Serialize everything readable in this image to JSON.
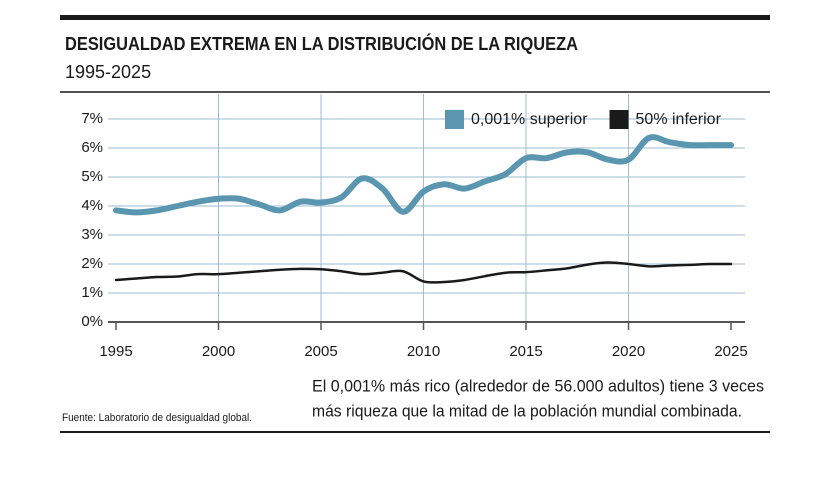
{
  "chart_data": {
    "type": "line",
    "title": "DESIGUALDAD EXTREMA EN LA DISTRIBUCIÓN DE LA RIQUEZA",
    "subtitle": "1995-2025",
    "source": "Fuente: Laboratorio de desigualdad global.",
    "annotation": [
      "El 0,001% más rico (alrededor de 56.000 adultos) tiene 3 veces",
      "más riqueza que la mitad de la población mundial combinada."
    ],
    "x": [
      1995,
      1996,
      1997,
      1998,
      1999,
      2000,
      2001,
      2002,
      2003,
      2004,
      2005,
      2006,
      2007,
      2008,
      2009,
      2010,
      2011,
      2012,
      2013,
      2014,
      2015,
      2016,
      2017,
      2018,
      2019,
      2020,
      2021,
      2022,
      2023,
      2024,
      2025
    ],
    "series": [
      {
        "name": "0,001% superior",
        "color": "#5b96b0",
        "values": [
          3.85,
          3.78,
          3.85,
          4.0,
          4.15,
          4.25,
          4.25,
          4.05,
          3.85,
          4.15,
          4.12,
          4.3,
          4.95,
          4.6,
          3.8,
          4.5,
          4.75,
          4.6,
          4.85,
          5.1,
          5.65,
          5.65,
          5.85,
          5.85,
          5.6,
          5.6,
          6.35,
          6.2,
          6.1,
          6.1,
          6.1
        ]
      },
      {
        "name": "50% inferior",
        "color": "#1a1a1a",
        "values": [
          1.45,
          1.5,
          1.55,
          1.57,
          1.65,
          1.65,
          1.7,
          1.75,
          1.8,
          1.83,
          1.82,
          1.75,
          1.65,
          1.7,
          1.75,
          1.4,
          1.38,
          1.45,
          1.58,
          1.7,
          1.72,
          1.78,
          1.85,
          1.98,
          2.05,
          2.0,
          1.92,
          1.95,
          1.97,
          2.0,
          2.0
        ]
      }
    ],
    "xlim": [
      1995,
      2025
    ],
    "xticks": [
      1995,
      2000,
      2005,
      2010,
      2015,
      2020,
      2025
    ],
    "ylim": [
      0,
      7
    ],
    "yticks": [
      {
        "value": 0,
        "label": "0%"
      },
      {
        "value": 1,
        "label": "1%"
      },
      {
        "value": 2,
        "label": "2%"
      },
      {
        "value": 3,
        "label": "3%"
      },
      {
        "value": 4,
        "label": "4%"
      },
      {
        "value": 5,
        "label": "5%"
      },
      {
        "value": 6,
        "label": "6%"
      },
      {
        "value": 7,
        "label": "7%"
      }
    ],
    "grid": true,
    "legend": "top-right"
  }
}
